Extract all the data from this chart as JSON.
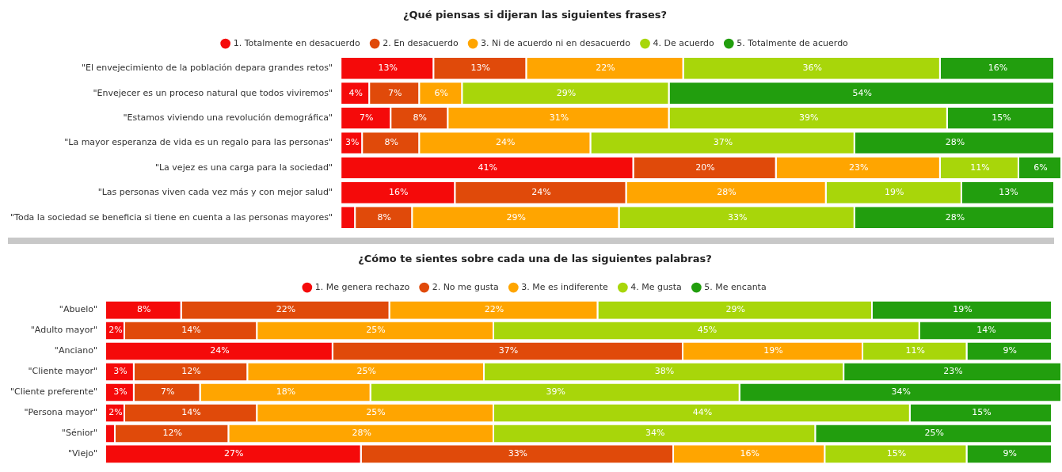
{
  "chart_data": [
    {
      "type": "bar",
      "orientation": "horizontal",
      "stacked": true,
      "title": "¿Qué piensas si dijeran las siguientes frases?",
      "legend": "top",
      "tick_labels": "y",
      "xlim": [
        0,
        101
      ],
      "categories": [
        "\"El envejecimiento de la población depara grandes retos\"",
        "\"Envejecer es un proceso natural que todos viviremos\"",
        "\"Estamos viviendo una revolución demográfica\"",
        "\"La mayor esperanza de vida es un regalo para las personas\"",
        "\"La vejez es una carga para la sociedad\"",
        "\"Las personas viven cada vez más y con mejor salud\"",
        "\"Toda la sociedad se beneficia si tiene en cuenta a las personas mayores\""
      ],
      "series": [
        {
          "name": "1. Totalmente en desacuerdo",
          "color": "#f50a0a",
          "values": [
            13,
            4,
            7,
            3,
            41,
            16,
            2
          ],
          "value_labels": [
            "13%",
            "4%",
            "7%",
            "3%",
            "41%",
            "16%",
            null
          ]
        },
        {
          "name": "2. En desacuerdo",
          "color": "#e04a0a",
          "values": [
            13,
            7,
            8,
            8,
            20,
            24,
            8
          ],
          "value_labels": [
            "13%",
            "7%",
            "8%",
            "8%",
            "20%",
            "24%",
            "8%"
          ]
        },
        {
          "name": "3. Ni de acuerdo ni en desacuerdo",
          "color": "#ffa500",
          "values": [
            22,
            6,
            31,
            24,
            23,
            28,
            29
          ],
          "value_labels": [
            "22%",
            "6%",
            "31%",
            "24%",
            "23%",
            "28%",
            "29%"
          ]
        },
        {
          "name": "4. De acuerdo",
          "color": "#a8d60a",
          "values": [
            36,
            29,
            39,
            37,
            11,
            19,
            33
          ],
          "value_labels": [
            "36%",
            "29%",
            "39%",
            "37%",
            "11%",
            "19%",
            "33%"
          ]
        },
        {
          "name": "5. Totalmente de acuerdo",
          "color": "#229e0e",
          "values": [
            16,
            54,
            15,
            28,
            6,
            13,
            28
          ],
          "value_labels": [
            "16%",
            "54%",
            "15%",
            "28%",
            "6%",
            "13%",
            "28%"
          ]
        }
      ]
    },
    {
      "type": "bar",
      "orientation": "horizontal",
      "stacked": true,
      "title": "¿Cómo te sientes sobre cada una de las siguientes palabras?",
      "legend": "top",
      "tick_labels": "y",
      "xlim": [
        0,
        101
      ],
      "categories": [
        "\"Abuelo\"",
        "\"Adulto mayor\"",
        "\"Anciano\"",
        "\"Cliente mayor\"",
        "\"Cliente preferente\"",
        "\"Persona mayor\"",
        "\"Sénior\"",
        "\"Viejo\""
      ],
      "series": [
        {
          "name": "1. Me genera rechazo",
          "color": "#f50a0a",
          "values": [
            8,
            2,
            24,
            3,
            3,
            2,
            1,
            27
          ],
          "value_labels": [
            "8%",
            "2%",
            "24%",
            "3%",
            "3%",
            "2%",
            null,
            "27%"
          ]
        },
        {
          "name": "2. No me gusta",
          "color": "#e04a0a",
          "values": [
            22,
            14,
            37,
            12,
            7,
            14,
            12,
            33
          ],
          "value_labels": [
            "22%",
            "14%",
            "37%",
            "12%",
            "7%",
            "14%",
            "12%",
            "33%"
          ]
        },
        {
          "name": "3. Me es indiferente",
          "color": "#ffa500",
          "values": [
            22,
            25,
            19,
            25,
            18,
            25,
            28,
            16
          ],
          "value_labels": [
            "22%",
            "25%",
            "19%",
            "25%",
            "18%",
            "25%",
            "28%",
            "16%"
          ]
        },
        {
          "name": "4. Me gusta",
          "color": "#a8d60a",
          "values": [
            29,
            45,
            11,
            38,
            39,
            44,
            34,
            15
          ],
          "value_labels": [
            "29%",
            "45%",
            "11%",
            "38%",
            "39%",
            "44%",
            "34%",
            "15%"
          ]
        },
        {
          "name": "5. Me encanta",
          "color": "#229e0e",
          "values": [
            19,
            14,
            9,
            23,
            34,
            15,
            25,
            9
          ],
          "value_labels": [
            "19%",
            "14%",
            "9%",
            "23%",
            "34%",
            "15%",
            "25%",
            "9%"
          ]
        }
      ]
    }
  ]
}
